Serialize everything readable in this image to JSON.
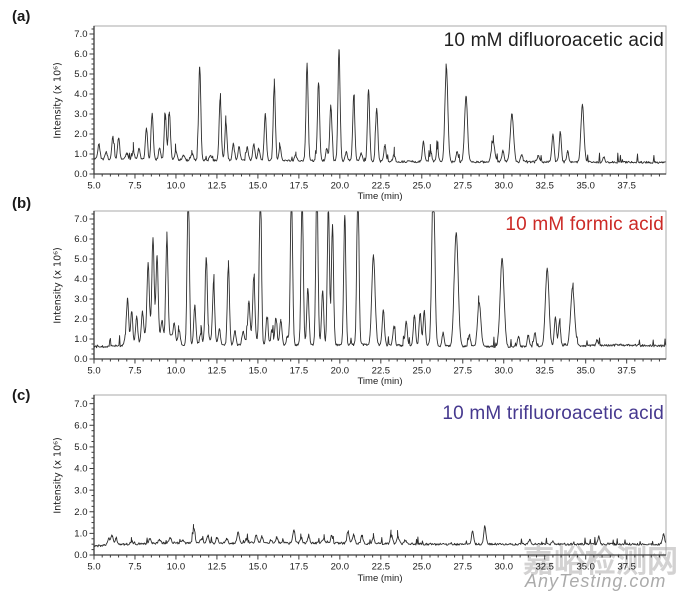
{
  "watermark": {
    "line1": "嘉峪检测网",
    "line2": "AnyTesting.com",
    "line1_color": "#d3d2d2",
    "line2_color": "#ababab"
  },
  "chart_data": [
    {
      "type": "line",
      "tag": "(a)",
      "title": "10 mM difluoroacetic acid",
      "title_color": "#1f1f1f",
      "xlabel": "Time (min)",
      "ylabel": "Intensity (x 10⁶)",
      "xlim": [
        5,
        39.9
      ],
      "ylim": [
        0,
        7.4
      ],
      "xticks": [
        5.0,
        7.5,
        10.0,
        12.5,
        15.0,
        17.5,
        20.0,
        22.5,
        25.0,
        27.5,
        30.0,
        32.5,
        35.0,
        37.5
      ],
      "yticks": [
        0.0,
        1.0,
        2.0,
        3.0,
        4.0,
        5.0,
        6.0,
        7.0
      ],
      "x_minor_step": 0.5,
      "y_minor_step": 0.25,
      "trace_color": "#2d2d2d",
      "noise": 0.055,
      "spike_prob": 0.06,
      "spike_amp": 0.45,
      "baseline": [
        [
          5,
          0.75
        ],
        [
          12,
          0.68
        ],
        [
          20,
          0.66
        ],
        [
          24,
          0.62
        ],
        [
          28,
          0.6
        ],
        [
          34,
          0.6
        ],
        [
          39.9,
          0.58
        ]
      ],
      "peaks": [
        [
          5.3,
          1.5
        ],
        [
          5.75,
          1.1
        ],
        [
          6.15,
          1.85
        ],
        [
          6.5,
          1.8
        ],
        [
          7.0,
          1.05
        ],
        [
          7.4,
          1.15
        ],
        [
          7.75,
          1.3
        ],
        [
          8.2,
          2.3
        ],
        [
          8.55,
          3.0
        ],
        [
          9.0,
          1.3
        ],
        [
          9.35,
          2.95
        ],
        [
          9.6,
          3.1
        ],
        [
          10.0,
          1.15
        ],
        [
          10.45,
          0.95
        ],
        [
          11.0,
          1.0
        ],
        [
          11.45,
          5.4
        ],
        [
          12.1,
          0.95
        ],
        [
          12.7,
          3.8
        ],
        [
          13.05,
          2.6
        ],
        [
          13.5,
          1.5
        ],
        [
          13.85,
          1.35
        ],
        [
          14.35,
          1.35
        ],
        [
          14.75,
          1.5
        ],
        [
          15.05,
          1.25
        ],
        [
          15.45,
          3.0
        ],
        [
          16.0,
          4.45
        ],
        [
          16.35,
          1.4
        ],
        [
          17.3,
          0.95
        ],
        [
          18.0,
          5.5
        ],
        [
          18.7,
          4.6
        ],
        [
          19.2,
          1.25
        ],
        [
          19.45,
          3.45
        ],
        [
          19.95,
          6.25
        ],
        [
          20.4,
          1.1
        ],
        [
          20.85,
          3.9
        ],
        [
          21.3,
          1.05
        ],
        [
          21.75,
          4.25
        ],
        [
          22.25,
          3.3
        ],
        [
          22.75,
          1.45
        ],
        [
          23.3,
          0.95
        ],
        [
          25.1,
          1.6
        ],
        [
          25.55,
          1.1
        ],
        [
          25.95,
          1.3
        ],
        [
          26.5,
          5.3,
          0.09
        ],
        [
          27.15,
          1.1
        ],
        [
          27.7,
          3.9,
          0.09
        ],
        [
          29.35,
          1.6,
          0.1
        ],
        [
          29.95,
          1.15
        ],
        [
          30.5,
          3.0,
          0.1
        ],
        [
          31.1,
          0.95
        ],
        [
          32.1,
          0.9
        ],
        [
          33.0,
          2.0
        ],
        [
          33.45,
          2.1
        ],
        [
          33.9,
          1.15
        ],
        [
          34.8,
          3.5,
          0.09
        ],
        [
          36.1,
          0.85
        ]
      ]
    },
    {
      "type": "line",
      "tag": "(b)",
      "title": "10 mM formic acid",
      "title_color": "#cc2a26",
      "xlabel": "Time (min)",
      "ylabel": "Intensity (x 10⁶)",
      "xlim": [
        5,
        39.9
      ],
      "ylim": [
        0,
        7.4
      ],
      "xticks": [
        5.0,
        7.5,
        10.0,
        12.5,
        15.0,
        17.5,
        20.0,
        22.5,
        25.0,
        27.5,
        30.0,
        32.5,
        35.0,
        37.5
      ],
      "yticks": [
        0.0,
        1.0,
        2.0,
        3.0,
        4.0,
        5.0,
        6.0,
        7.0
      ],
      "x_minor_step": 0.5,
      "y_minor_step": 0.25,
      "trace_color": "#2d2d2d",
      "noise": 0.055,
      "spike_prob": 0.07,
      "spike_amp": 0.5,
      "baseline": [
        [
          5,
          0.6
        ],
        [
          7,
          0.68
        ],
        [
          14,
          0.68
        ],
        [
          21,
          0.72
        ],
        [
          26,
          0.65
        ],
        [
          30,
          0.6
        ],
        [
          34,
          0.65
        ],
        [
          37,
          0.7
        ],
        [
          39.9,
          0.65
        ]
      ],
      "peaks": [
        [
          6.9,
          1.0
        ],
        [
          7.05,
          3.0
        ],
        [
          7.3,
          2.4
        ],
        [
          7.6,
          2.1
        ],
        [
          7.95,
          2.1
        ],
        [
          8.3,
          4.0
        ],
        [
          8.5,
          1.6,
          0.35
        ],
        [
          8.6,
          5.15
        ],
        [
          8.85,
          4.55
        ],
        [
          9.15,
          1.6
        ],
        [
          9.45,
          5.6
        ],
        [
          9.6,
          1.2,
          0.3
        ],
        [
          9.9,
          1.45
        ],
        [
          10.2,
          1.35
        ],
        [
          10.75,
          9.0
        ],
        [
          11.15,
          2.65
        ],
        [
          11.5,
          1.15
        ],
        [
          11.85,
          4.8
        ],
        [
          12.0,
          1.0,
          0.3
        ],
        [
          12.3,
          3.65
        ],
        [
          12.65,
          1.5
        ],
        [
          13.2,
          4.65
        ],
        [
          13.6,
          1.4
        ],
        [
          14.1,
          1.25
        ],
        [
          14.45,
          2.5
        ],
        [
          14.6,
          1.1,
          0.3
        ],
        [
          14.75,
          3.75
        ],
        [
          15.15,
          9.0
        ],
        [
          15.55,
          2.1
        ],
        [
          15.85,
          1.45
        ],
        [
          16.1,
          2.05
        ],
        [
          16.4,
          1.95
        ],
        [
          16.8,
          1.15
        ],
        [
          17.05,
          9.0
        ],
        [
          17.7,
          8.8
        ],
        [
          18.05,
          3.55
        ],
        [
          18.6,
          9.0
        ],
        [
          18.95,
          3.4
        ],
        [
          19.3,
          7.6
        ],
        [
          19.55,
          6.7
        ],
        [
          20.3,
          7.2
        ],
        [
          21.1,
          9.0
        ],
        [
          22.05,
          5.2,
          0.1
        ],
        [
          22.65,
          2.5
        ],
        [
          23.3,
          1.6
        ],
        [
          24.05,
          1.9
        ],
        [
          24.55,
          2.2
        ],
        [
          24.9,
          2.3
        ],
        [
          25.15,
          2.4
        ],
        [
          25.7,
          9.0,
          0.09
        ],
        [
          26.3,
          1.3
        ],
        [
          27.1,
          6.3,
          0.12
        ],
        [
          27.9,
          1.2
        ],
        [
          28.5,
          2.85,
          0.1
        ],
        [
          29.9,
          5.0,
          0.12
        ],
        [
          30.9,
          1.1
        ],
        [
          31.5,
          1.2
        ],
        [
          31.9,
          1.3
        ],
        [
          32.65,
          4.5,
          0.11
        ],
        [
          33.15,
          2.1
        ],
        [
          33.4,
          1.9
        ],
        [
          34.2,
          3.55,
          0.12
        ],
        [
          35.7,
          0.95
        ]
      ]
    },
    {
      "type": "line",
      "tag": "(c)",
      "title": "10 mM trifluoroacetic acid",
      "title_color": "#46398f",
      "xlabel": "Time (min)",
      "ylabel": "Intensity (x 10⁶)",
      "xlim": [
        5,
        39.9
      ],
      "ylim": [
        0,
        7.4
      ],
      "xticks": [
        5.0,
        7.5,
        10.0,
        12.5,
        15.0,
        17.5,
        20.0,
        22.5,
        25.0,
        27.5,
        30.0,
        32.5,
        35.0,
        37.5
      ],
      "yticks": [
        0.0,
        1.0,
        2.0,
        3.0,
        4.0,
        5.0,
        6.0,
        7.0
      ],
      "x_minor_step": 0.5,
      "y_minor_step": 0.25,
      "trace_color": "#2d2d2d",
      "noise": 0.05,
      "spike_prob": 0.05,
      "spike_amp": 0.3,
      "baseline": [
        [
          5,
          0.42
        ],
        [
          7,
          0.5
        ],
        [
          9,
          0.55
        ],
        [
          20,
          0.55
        ],
        [
          26,
          0.5
        ],
        [
          39.9,
          0.5
        ]
      ],
      "peaks": [
        [
          5.9,
          0.8
        ],
        [
          6.1,
          0.9
        ],
        [
          6.35,
          0.8
        ],
        [
          7.3,
          0.65
        ],
        [
          8.4,
          0.75
        ],
        [
          9.0,
          0.7
        ],
        [
          9.65,
          0.8
        ],
        [
          10.4,
          0.7
        ],
        [
          11.1,
          1.25
        ],
        [
          11.55,
          0.75
        ],
        [
          11.95,
          0.9
        ],
        [
          12.5,
          0.8
        ],
        [
          13.1,
          0.75
        ],
        [
          13.8,
          1.05
        ],
        [
          14.3,
          0.75
        ],
        [
          14.9,
          0.95
        ],
        [
          15.25,
          0.85
        ],
        [
          15.8,
          0.7
        ],
        [
          16.15,
          0.8
        ],
        [
          17.2,
          1.15
        ],
        [
          17.65,
          0.8
        ],
        [
          18.1,
          0.85
        ],
        [
          19.0,
          0.75
        ],
        [
          19.5,
          0.9
        ],
        [
          20.5,
          1.1
        ],
        [
          20.85,
          0.95
        ],
        [
          21.35,
          0.9
        ],
        [
          22.05,
          0.8
        ],
        [
          23.15,
          0.9
        ],
        [
          23.55,
          0.85
        ],
        [
          24.0,
          0.7
        ],
        [
          28.1,
          1.1
        ],
        [
          28.85,
          1.35
        ],
        [
          31.6,
          0.7
        ],
        [
          33.0,
          0.65
        ],
        [
          35.8,
          0.85
        ],
        [
          39.75,
          0.95
        ]
      ]
    }
  ]
}
